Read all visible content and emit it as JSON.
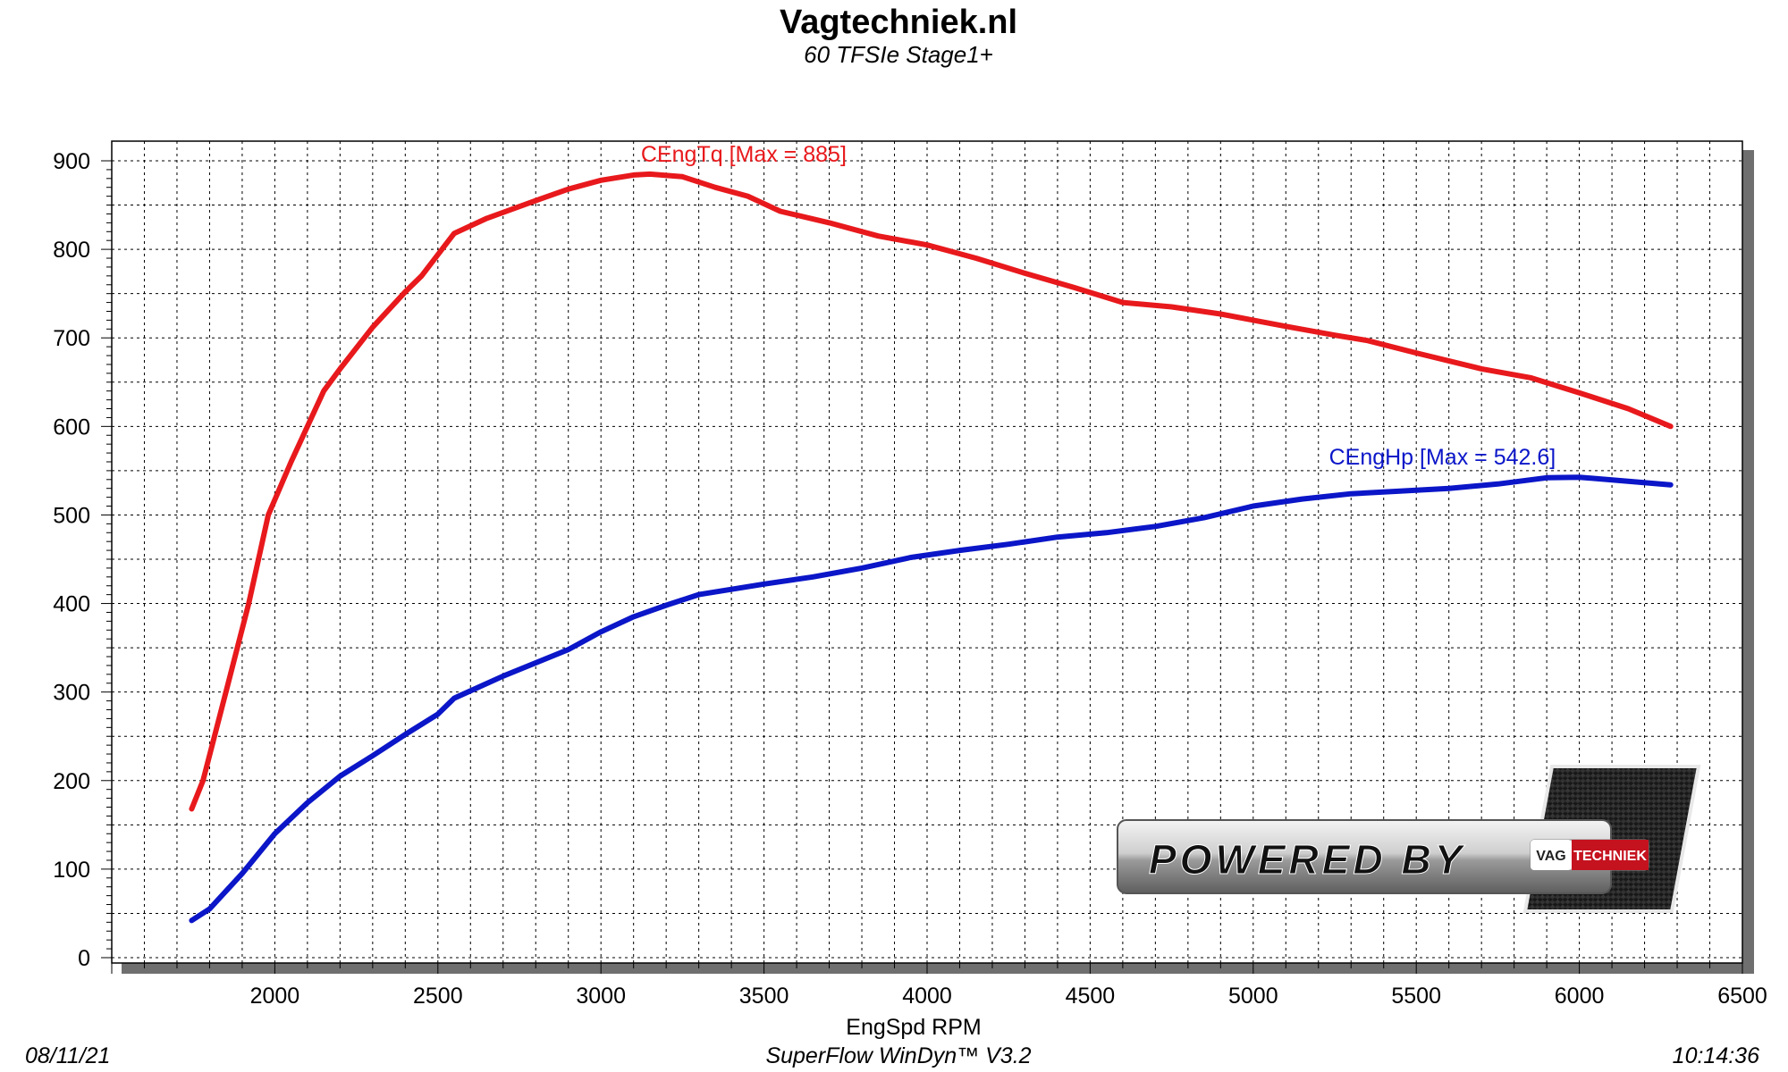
{
  "header": {
    "title": "Vagtechniek.nl",
    "subtitle": "60 TFSIe Stage1+"
  },
  "footer": {
    "date": "08/11/21",
    "software": "SuperFlow WinDyn™  V3.2",
    "time": "10:14:36"
  },
  "badge": {
    "text": "POWERED BY",
    "logo_left": "VAG",
    "logo_right": "TECHNIEK"
  },
  "chart_data": {
    "type": "line",
    "title": "Vagtechniek.nl",
    "subtitle": "60 TFSIe Stage1+",
    "xlabel": "EngSpd RPM",
    "ylabel": "",
    "xlim": [
      1500,
      6500
    ],
    "ylim": [
      0,
      900
    ],
    "x_ticks": [
      2000,
      2500,
      3000,
      3500,
      4000,
      4500,
      5000,
      5500,
      6000,
      6500
    ],
    "y_ticks": [
      0,
      100,
      200,
      300,
      400,
      500,
      600,
      700,
      800,
      900
    ],
    "grid": true,
    "series": [
      {
        "name": "CEngTq",
        "label": "CEngTq [Max = 885]",
        "color": "#e8191c",
        "points": [
          [
            1745,
            168
          ],
          [
            1780,
            200
          ],
          [
            1850,
            300
          ],
          [
            1920,
            400
          ],
          [
            1980,
            500
          ],
          [
            2050,
            560
          ],
          [
            2150,
            640
          ],
          [
            2200,
            665
          ],
          [
            2300,
            712
          ],
          [
            2400,
            752
          ],
          [
            2450,
            770
          ],
          [
            2550,
            818
          ],
          [
            2650,
            835
          ],
          [
            2800,
            855
          ],
          [
            2900,
            868
          ],
          [
            3000,
            878
          ],
          [
            3100,
            884
          ],
          [
            3150,
            885
          ],
          [
            3250,
            882
          ],
          [
            3350,
            870
          ],
          [
            3450,
            860
          ],
          [
            3550,
            843
          ],
          [
            3700,
            830
          ],
          [
            3850,
            815
          ],
          [
            4000,
            805
          ],
          [
            4150,
            790
          ],
          [
            4300,
            773
          ],
          [
            4450,
            757
          ],
          [
            4600,
            740
          ],
          [
            4750,
            735
          ],
          [
            4900,
            727
          ],
          [
            5000,
            720
          ],
          [
            5100,
            713
          ],
          [
            5250,
            703
          ],
          [
            5350,
            697
          ],
          [
            5500,
            683
          ],
          [
            5700,
            665
          ],
          [
            5850,
            655
          ],
          [
            6000,
            638
          ],
          [
            6150,
            620
          ],
          [
            6280,
            600
          ]
        ]
      },
      {
        "name": "CEngHp",
        "label": "CEngHp [Max = 542.6]",
        "color": "#0b16c8",
        "points": [
          [
            1745,
            42
          ],
          [
            1800,
            55
          ],
          [
            1900,
            95
          ],
          [
            2000,
            140
          ],
          [
            2100,
            175
          ],
          [
            2200,
            205
          ],
          [
            2300,
            228
          ],
          [
            2400,
            252
          ],
          [
            2500,
            275
          ],
          [
            2550,
            293
          ],
          [
            2700,
            318
          ],
          [
            2900,
            348
          ],
          [
            3000,
            368
          ],
          [
            3100,
            385
          ],
          [
            3200,
            398
          ],
          [
            3300,
            410
          ],
          [
            3400,
            416
          ],
          [
            3500,
            422
          ],
          [
            3650,
            430
          ],
          [
            3800,
            440
          ],
          [
            3950,
            452
          ],
          [
            4100,
            460
          ],
          [
            4250,
            467
          ],
          [
            4400,
            475
          ],
          [
            4550,
            480
          ],
          [
            4700,
            487
          ],
          [
            4850,
            497
          ],
          [
            5000,
            510
          ],
          [
            5150,
            518
          ],
          [
            5300,
            524
          ],
          [
            5450,
            527
          ],
          [
            5600,
            530
          ],
          [
            5750,
            535
          ],
          [
            5900,
            542
          ],
          [
            6000,
            542.6
          ],
          [
            6150,
            538
          ],
          [
            6280,
            534
          ]
        ]
      }
    ]
  }
}
